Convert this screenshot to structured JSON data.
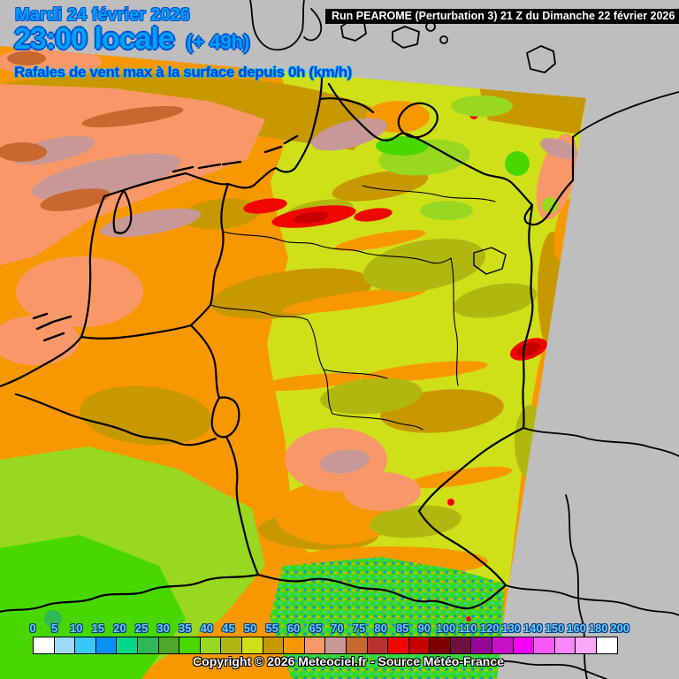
{
  "header": {
    "date_line": "Mardi 24 février 2026",
    "time_line": "23:00 locale",
    "time_offset": "(+ 49h)",
    "run_info": "Run PEAROME (Perturbation 3) 21 Z du Dimanche 22 février 2026",
    "parameter": "Rafales de vent max à la surface depuis 0h (km/h)"
  },
  "footer": {
    "copyright": "Copyright © 2026 Meteociel.fr - Source Météo-France"
  },
  "colors": {
    "background_gray": "#BEBEBE",
    "banner_background": "#000000",
    "banner_text": "#FFFFFF",
    "title_fill": "#00A2FF",
    "title_outline": "#0050D0",
    "parameter_fill": "#0040D8",
    "parameter_glow": "#00C0FF",
    "legend_label": "#6FCBFA",
    "border_line": "#000000"
  },
  "legend": {
    "unit": "km/h",
    "labels": [
      "0",
      "5",
      "10",
      "15",
      "20",
      "25",
      "30",
      "35",
      "40",
      "45",
      "50",
      "55",
      "60",
      "65",
      "70",
      "75",
      "80",
      "85",
      "90",
      "100",
      "110",
      "120",
      "130",
      "140",
      "150",
      "160",
      "180",
      "200"
    ],
    "colors": [
      "#FFFFFF",
      "#A0D8F8",
      "#38C8F8",
      "#0890F8",
      "#00D888",
      "#30B858",
      "#50A828",
      "#48D800",
      "#98D820",
      "#B0B810",
      "#D0E018",
      "#C89800",
      "#F89800",
      "#F89868",
      "#C89898",
      "#C86830",
      "#B83030",
      "#F00800",
      "#C80000",
      "#800000",
      "#701040",
      "#980898",
      "#C810C8",
      "#F800F8",
      "#F858F8",
      "#F888F8",
      "#F8A8F8",
      "#FFFFFF"
    ]
  }
}
